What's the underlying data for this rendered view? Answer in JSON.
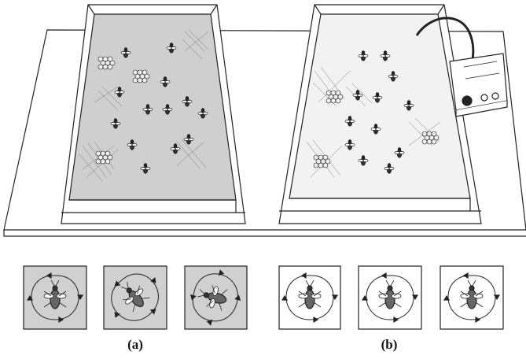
{
  "labels": {
    "a": "(a)",
    "b": "(b)"
  }
}
